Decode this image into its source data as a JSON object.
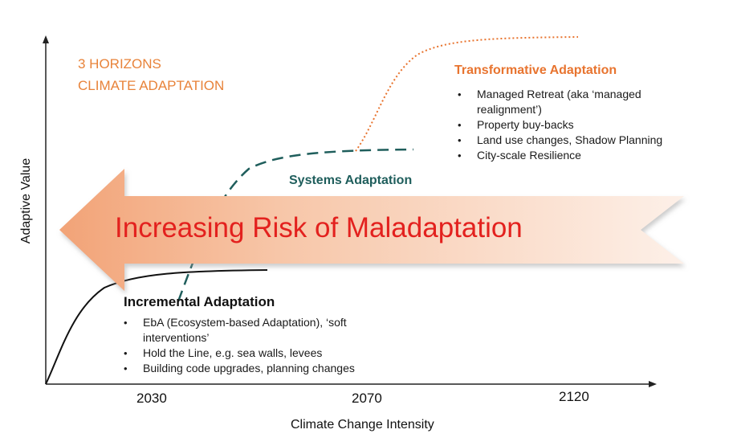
{
  "title": {
    "line1": "3 HORIZONS",
    "line2": "CLIMATE ADAPTATION"
  },
  "banner": {
    "text": "Increasing Risk of Maladaptation",
    "direction": "left"
  },
  "axes": {
    "x_label": "Climate Change Intensity",
    "y_label": "Adaptive Value",
    "x_ticks": [
      "2030",
      "2070",
      "2120"
    ]
  },
  "horizons": {
    "transformative": {
      "title": "Transformative Adaptation",
      "line_style": "dotted",
      "items": [
        "Managed Retreat (aka ‘managed realignment’)",
        "Property buy-backs",
        "Land use changes, Shadow Planning",
        "City-scale Resilience"
      ]
    },
    "systems": {
      "title": "Systems Adaptation",
      "line_style": "dashed"
    },
    "incremental": {
      "title": "Incremental Adaptation",
      "line_style": "solid",
      "items": [
        "EbA (Ecosystem-based Adaptation), ‘soft interventions’",
        "Hold the Line, e.g. sea walls, levees",
        "Building code upgrades, planning changes"
      ]
    }
  },
  "colors": {
    "title": "#e8833a",
    "transformative": "#e8742f",
    "systems": "#1f5e5c",
    "incremental": "#111111",
    "banner_text": "#e3211e",
    "banner_fill_dark": "#f2a377",
    "banner_fill_light": "#fdf0e8"
  }
}
